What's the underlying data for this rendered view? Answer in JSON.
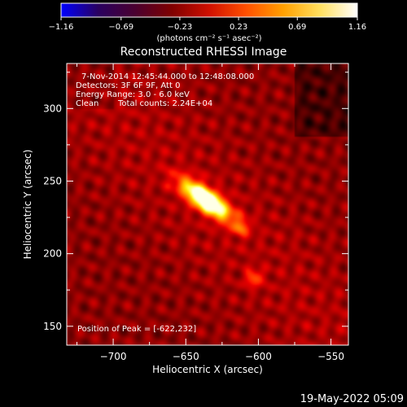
{
  "chart_data": {
    "type": "heatmap",
    "title": "Reconstructed RHESSI Image",
    "xlabel": "Heliocentric X (arcsec)",
    "ylabel": "Heliocentric Y (arcsec)",
    "xlim": [
      -732,
      -538
    ],
    "ylim": [
      137,
      331
    ],
    "x_ticks": [
      -700,
      -650,
      -600,
      -550
    ],
    "y_ticks": [
      150,
      200,
      250,
      300
    ],
    "x_tick_labels": [
      "−700",
      "−650",
      "−600",
      "−550"
    ],
    "y_tick_labels": [
      "150",
      "200",
      "250",
      "300"
    ],
    "grid": false,
    "colorbar": {
      "min": -1.16,
      "max": 1.16,
      "ticks": [
        -1.16,
        -0.69,
        -0.23,
        0.23,
        0.69,
        1.16
      ],
      "tick_labels": [
        "−1.16",
        "−0.69",
        "−0.23",
        "0.23",
        "0.69",
        "1.16"
      ],
      "label": "(photons cm⁻² s⁻¹ asec⁻²)",
      "colors": [
        "#0000ff",
        "#2a0060",
        "#4a0030",
        "#800000",
        "#d01000",
        "#ff5000",
        "#ffa000",
        "#ffe060",
        "#ffffff"
      ]
    },
    "annotations": [
      "7-Nov-2014 12:45:44.000 to 12:48:08.000",
      "Detectors: 3F 6F 9F, Att 0",
      "Energy Range: 3.0 - 6.0 keV",
      "Clean",
      "Total counts: 2.24E+04",
      "Position of Peak = [-622,232]"
    ],
    "sources": [
      {
        "x": -636,
        "y": 237,
        "sx": 14,
        "sy": 5,
        "angle_deg": -36,
        "amp": 1.0
      },
      {
        "x": -612,
        "y": 218,
        "sx": 4,
        "sy": 4,
        "angle_deg": 0,
        "amp": 0.25
      },
      {
        "x": -603,
        "y": 183,
        "sx": 4,
        "sy": 4,
        "angle_deg": 0,
        "amp": 0.28
      }
    ],
    "background_level": 0.25
  },
  "timestamp": "19-May-2022 05:09"
}
